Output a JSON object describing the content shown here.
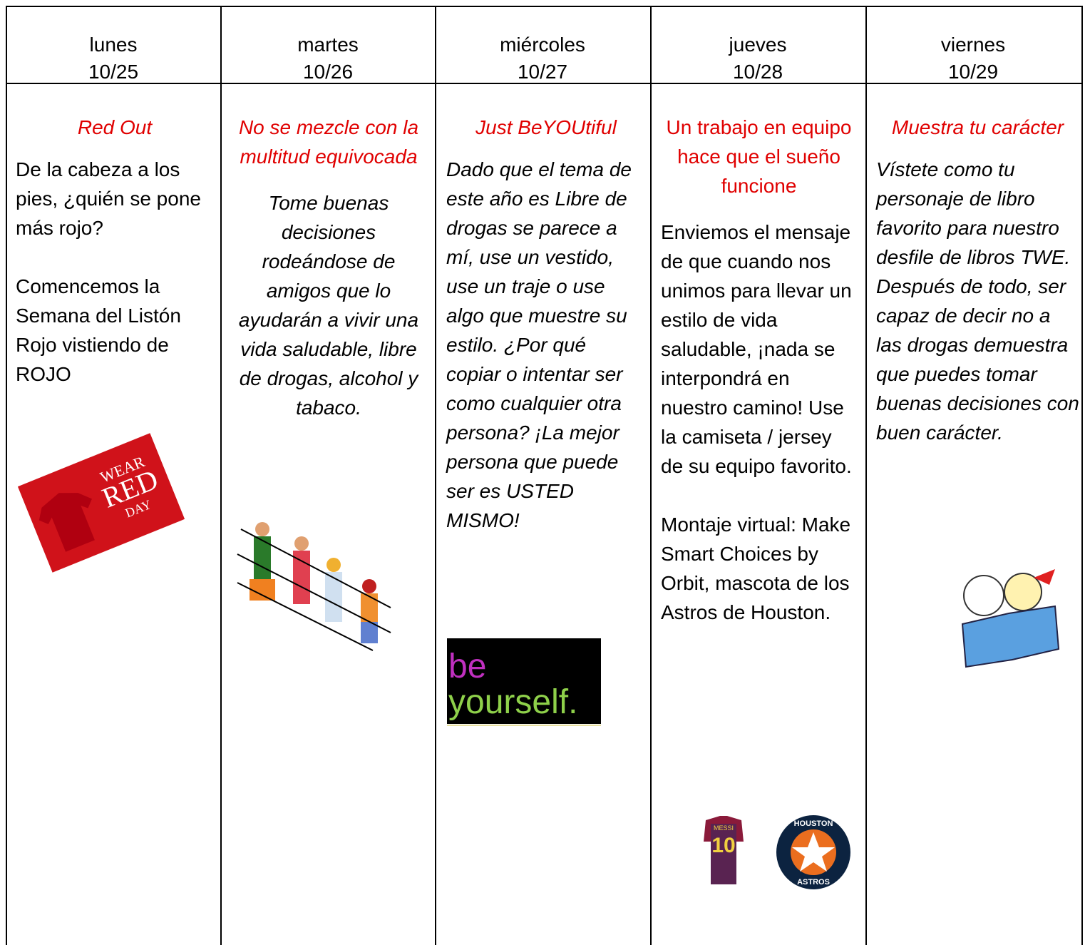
{
  "header": {
    "columns": [
      {
        "day": "lunes",
        "date": "10/25"
      },
      {
        "day": "martes",
        "date": "10/26"
      },
      {
        "day": "miércoles",
        "date": "10/27"
      },
      {
        "day": "jueves",
        "date": "10/28"
      },
      {
        "day": "viernes",
        "date": "10/29"
      }
    ]
  },
  "cells": [
    {
      "title": "Red Out",
      "paragraphs": [
        "De la cabeza a los pies, ¿quién se pone más rojo?",
        "Comencemos la Semana del Listón Rojo vistiendo de ROJO"
      ],
      "image_text": [
        "WEAR",
        "RED",
        "DAY"
      ]
    },
    {
      "title": "No se mezcle con la multitud equivocada",
      "paragraphs": [
        "Tome buenas decisiones rodeándose de amigos que lo ayudarán a vivir una vida saludable, libre de drogas, alcohol y tabaco."
      ]
    },
    {
      "title": "Just BeYOUtiful",
      "paragraphs": [
        "Dado que el tema de este año es Libre de drogas se parece a mí, use un vestido, use un traje o use algo que muestre su estilo. ¿Por qué copiar o intentar ser como cualquier otra persona? ¡La mejor persona que puede ser es USTED MISMO!"
      ],
      "image_text": [
        "be",
        "yourself."
      ]
    },
    {
      "title": "Un trabajo en equipo hace que el sueño funcione",
      "paragraphs": [
        "Enviemos el mensaje de que cuando nos unimos para llevar un estilo de vida saludable, ¡nada se interpondrá en nuestro camino! Use la camiseta / jersey de su equipo favorito.",
        "Montaje virtual: Make Smart Choices by Orbit, mascota de los Astros de Houston."
      ],
      "image_text": [
        "MESSI",
        "10",
        "HOUSTON",
        "ASTROS"
      ]
    },
    {
      "title": "Muestra tu carácter",
      "paragraphs": [
        "Vístete como tu personaje de libro favorito para nuestro desfile de libros TWE. Después de todo, ser capaz de decir no a las drogas demuestra que puedes tomar buenas decisiones con buen carácter."
      ]
    }
  ]
}
